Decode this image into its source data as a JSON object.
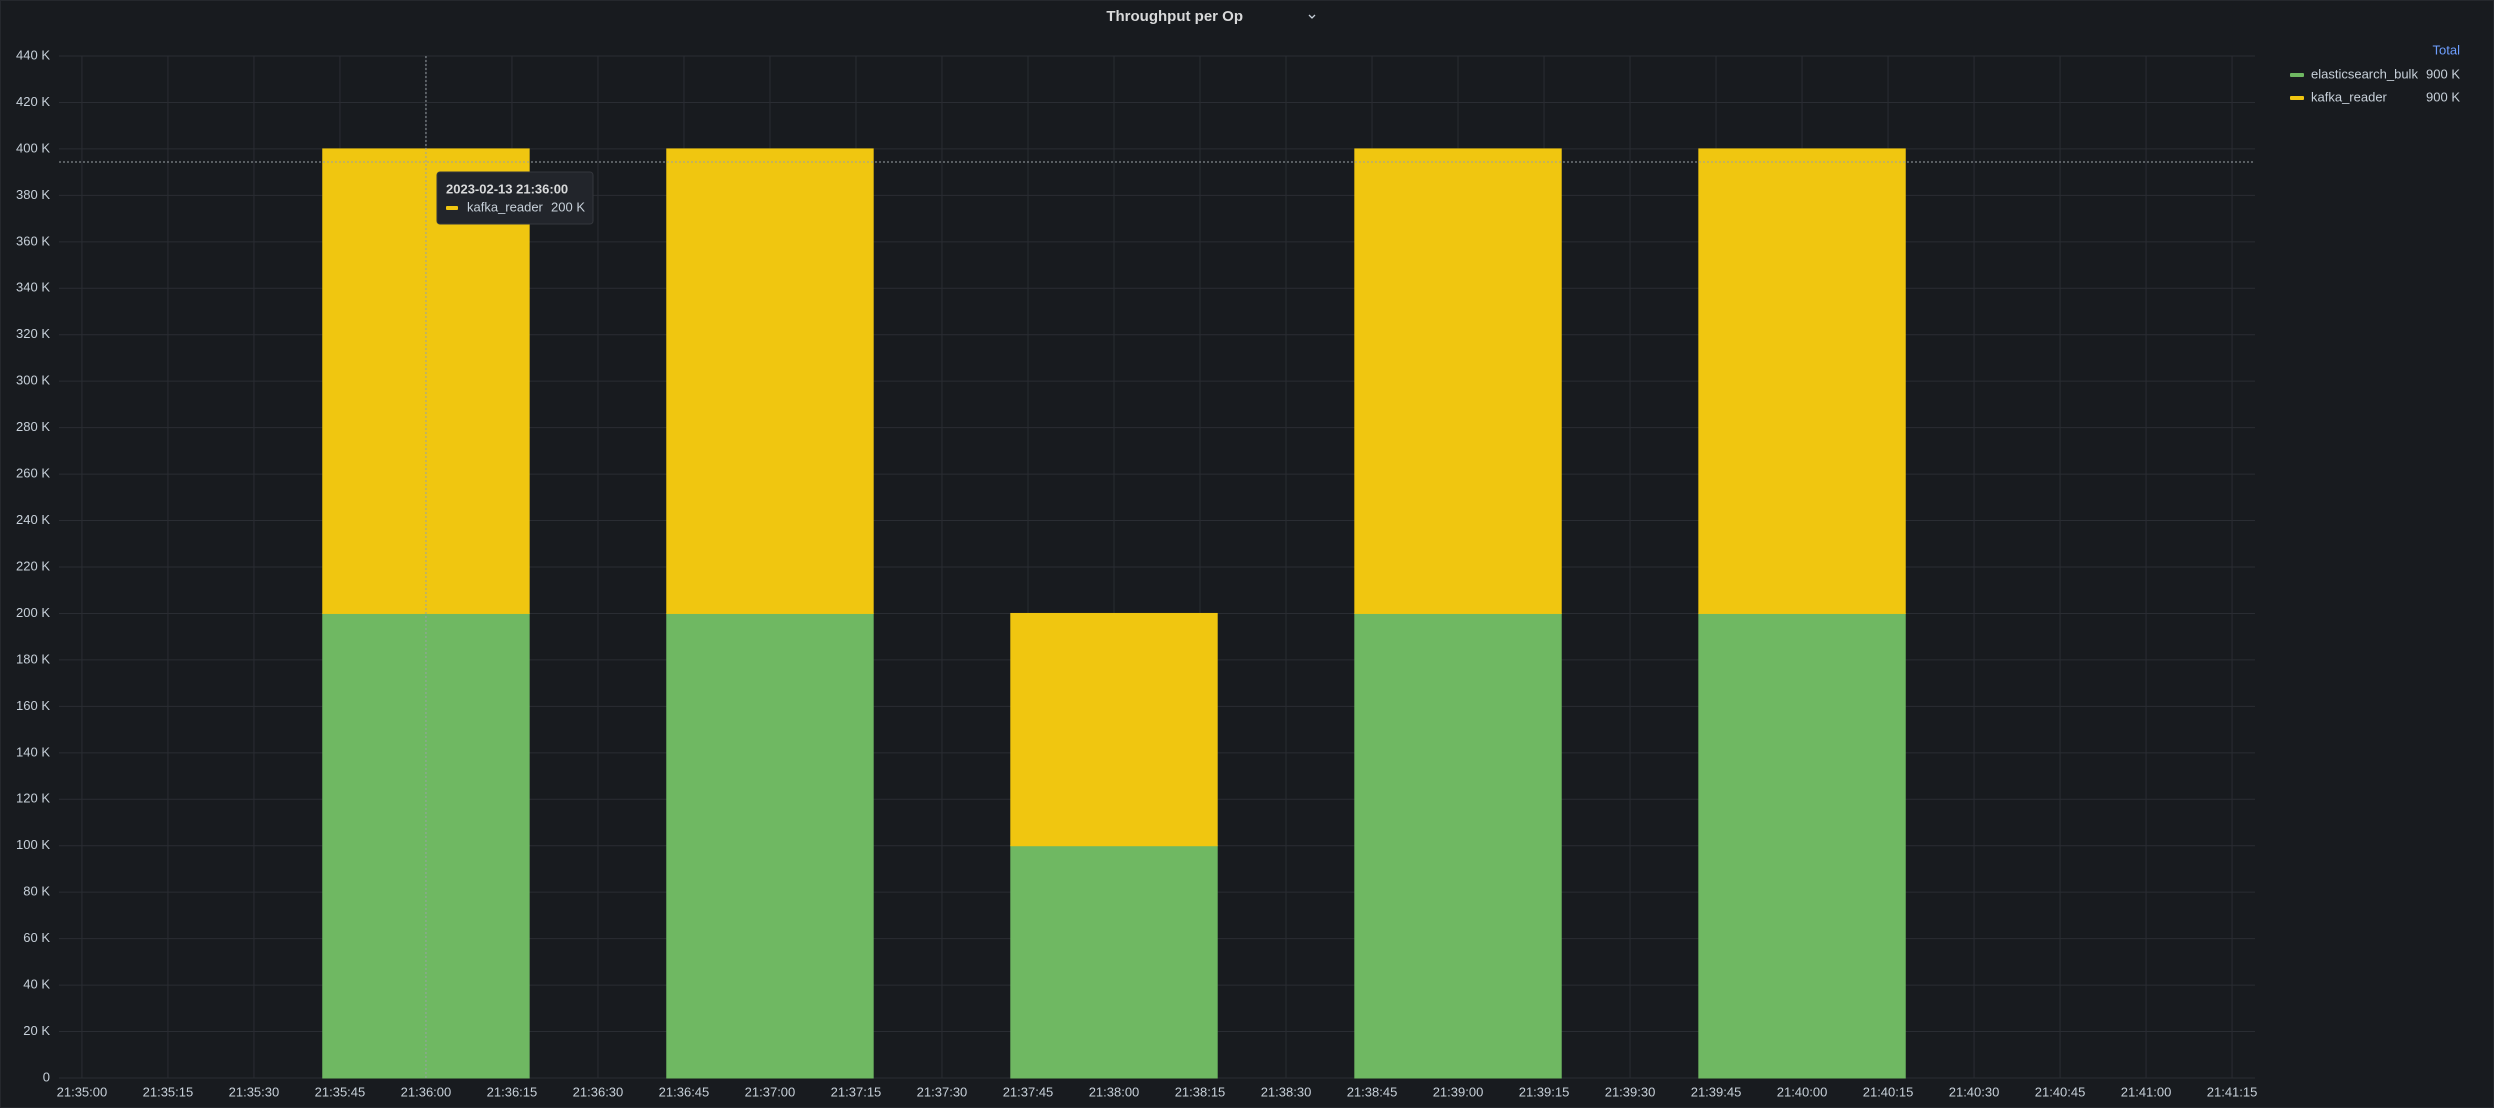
{
  "chart_data": {
    "type": "bar",
    "stacked": true,
    "title": "Throughput per Op",
    "x": [
      "21:35:00",
      "21:36:00",
      "21:37:00",
      "21:38:00",
      "21:39:00",
      "21:40:00",
      "21:41:00"
    ],
    "series": [
      {
        "name": "elasticsearch_bulk",
        "color": "#6fb862",
        "values": [
          0,
          200000,
          200000,
          100000,
          200000,
          200000,
          0
        ]
      },
      {
        "name": "kafka_reader",
        "color": "#f0c610",
        "values": [
          0,
          200000,
          200000,
          100000,
          200000,
          200000,
          0
        ]
      }
    ],
    "xlim": [
      "21:34:56",
      "21:41:19"
    ],
    "xticks": [
      "21:35:00",
      "21:35:15",
      "21:35:30",
      "21:35:45",
      "21:36:00",
      "21:36:15",
      "21:36:30",
      "21:36:45",
      "21:37:00",
      "21:37:15",
      "21:37:30",
      "21:37:45",
      "21:38:00",
      "21:38:15",
      "21:38:30",
      "21:38:45",
      "21:39:00",
      "21:39:15",
      "21:39:30",
      "21:39:45",
      "21:40:00",
      "21:40:15",
      "21:40:30",
      "21:40:45",
      "21:41:00",
      "21:41:15"
    ],
    "ylim": [
      0,
      440000
    ],
    "yticks": [
      0,
      {
        "value": 20000,
        "label": "20 K"
      },
      {
        "value": 40000,
        "label": "40 K"
      },
      {
        "value": 60000,
        "label": "60 K"
      },
      {
        "value": 80000,
        "label": "80 K"
      },
      {
        "value": 100000,
        "label": "100 K"
      },
      {
        "value": 120000,
        "label": "120 K"
      },
      {
        "value": 140000,
        "label": "140 K"
      },
      {
        "value": 160000,
        "label": "160 K"
      },
      {
        "value": 180000,
        "label": "180 K"
      },
      {
        "value": 200000,
        "label": "200 K"
      },
      {
        "value": 220000,
        "label": "220 K"
      },
      {
        "value": 240000,
        "label": "240 K"
      },
      {
        "value": 260000,
        "label": "260 K"
      },
      {
        "value": 280000,
        "label": "280 K"
      },
      {
        "value": 300000,
        "label": "300 K"
      },
      {
        "value": 320000,
        "label": "320 K"
      },
      {
        "value": 340000,
        "label": "340 K"
      },
      {
        "value": 360000,
        "label": "360 K"
      },
      {
        "value": 380000,
        "label": "380 K"
      },
      {
        "value": 400000,
        "label": "400 K"
      },
      {
        "value": 420000,
        "label": "420 K"
      },
      {
        "value": 440000,
        "label": "440 K"
      }
    ],
    "grid": true,
    "legend": {
      "position": "right",
      "header": "Total",
      "totals": [
        {
          "value": 900000,
          "label": "900 K"
        },
        {
          "value": 900000,
          "label": "900 K"
        }
      ]
    },
    "tooltip": {
      "time": "2023-02-13 21:36:00",
      "series": "kafka_reader",
      "value": {
        "value": 200000,
        "label": "200 K"
      }
    }
  }
}
